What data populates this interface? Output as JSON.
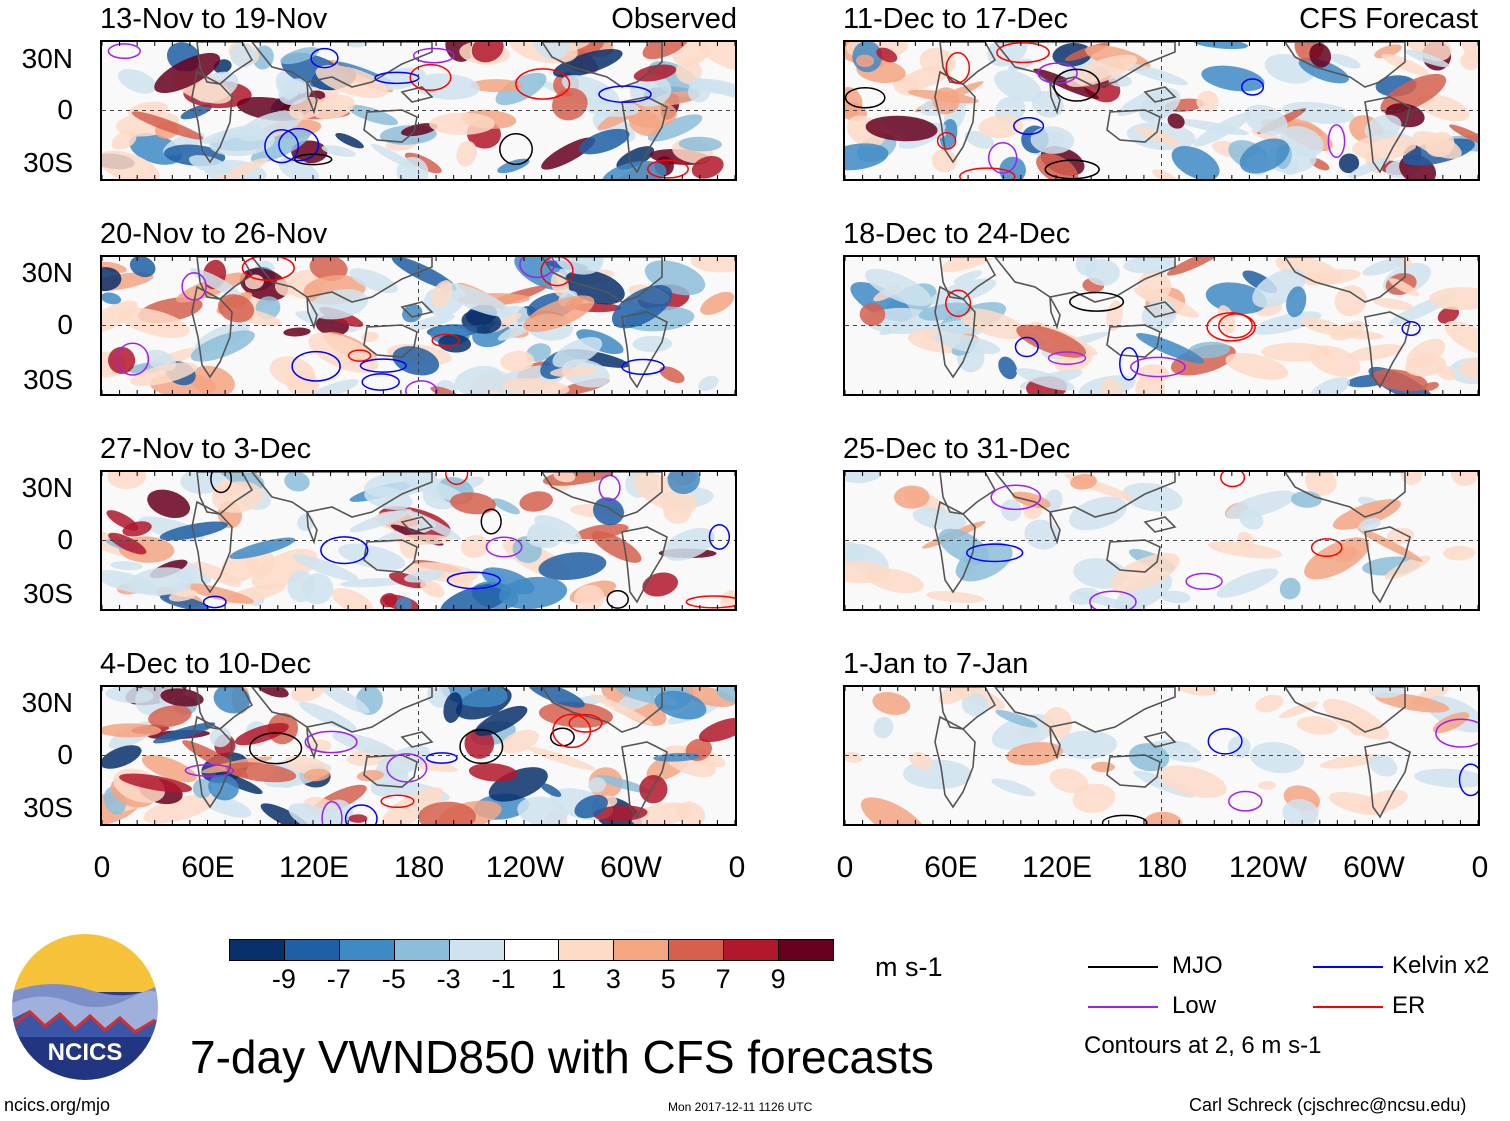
{
  "panels": {
    "observed": [
      {
        "title": "13-Nov to 19-Nov",
        "tag": "Observed"
      },
      {
        "title": "20-Nov to 26-Nov",
        "tag": ""
      },
      {
        "title": "27-Nov to 3-Dec",
        "tag": ""
      },
      {
        "title": "4-Dec to 10-Dec",
        "tag": ""
      }
    ],
    "forecast": [
      {
        "title": "11-Dec to 17-Dec",
        "tag": "CFS Forecast"
      },
      {
        "title": "18-Dec to 24-Dec",
        "tag": ""
      },
      {
        "title": "25-Dec to 31-Dec",
        "tag": ""
      },
      {
        "title": "1-Jan to 7-Jan",
        "tag": ""
      }
    ]
  },
  "axes": {
    "lat_labels": [
      "30N",
      "0",
      "30S"
    ],
    "lon_labels": [
      "0",
      "60E",
      "120E",
      "180",
      "120W",
      "60W",
      "0"
    ]
  },
  "colorbar": {
    "colors": [
      "#08306b",
      "#1f5fa5",
      "#3f8ac4",
      "#8cbedb",
      "#cfe3ef",
      "#ffffff",
      "#fddbc7",
      "#f4a582",
      "#d6604d",
      "#b2182b",
      "#67001f"
    ],
    "ticks": [
      "-9",
      "-7",
      "-5",
      "-3",
      "-1",
      "1",
      "3",
      "5",
      "7",
      "9"
    ],
    "units": "m s-1"
  },
  "legend": {
    "items": [
      {
        "label": "MJO",
        "color": "#000000"
      },
      {
        "label": "Kelvin x2",
        "color": "#0000ff"
      },
      {
        "label": "Low",
        "color": "#a020f0"
      },
      {
        "label": "ER",
        "color": "#ff0000"
      }
    ],
    "contours_note": "Contours at 2, 6 m s-1"
  },
  "logo": {
    "text": "NCICS"
  },
  "footer": {
    "title": "7-day VWND850 with CFS forecasts",
    "url": "ncics.org/mjo",
    "timestamp": "Mon 2017-12-11 1126 UTC",
    "author": "Carl Schreck (cjschrec@ncsu.edu)"
  }
}
